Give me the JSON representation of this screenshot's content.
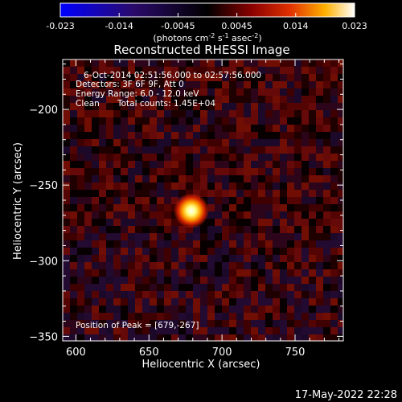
{
  "colorbar": {
    "ticks": [
      "-0.023",
      "-0.014",
      "-0.0045",
      "0.0045",
      "0.014",
      "0.023"
    ],
    "unit_label": "(photons cm",
    "unit_label_sup1": "-2",
    "unit_label_mid": " s",
    "unit_label_sup2": "-1",
    "unit_label_end": " asec",
    "unit_label_sup3": "-2",
    "unit_label_close": ")"
  },
  "chart_data": {
    "type": "heatmap",
    "title": "Reconstructed RHESSI Image",
    "xlabel": "Heliocentric X (arcsec)",
    "ylabel": "Heliocentric Y (arcsec)",
    "xlim": [
      591,
      783
    ],
    "ylim": [
      -353,
      -167
    ],
    "x_ticks": [
      600,
      650,
      700,
      750
    ],
    "y_ticks": [
      -200,
      -250,
      -300,
      -350
    ],
    "color_range": [
      -0.023,
      0.023
    ],
    "colormap": "blue-black-red-yellow-white",
    "peak": {
      "x": 679,
      "y": -267,
      "value": 0.023
    },
    "annotations": {
      "time_range": "6-Oct-2014 02:51:56.000 to 02:57:56.000",
      "detectors": "Detectors: 3F 6F 9F, Att 0",
      "energy_range": "Energy Range: 6.0 - 12.0 keV",
      "method": "Clean",
      "total_counts": "Total counts: 1.45E+04",
      "peak_position": "Position of Peak = [679,-267]"
    }
  },
  "timestamp": "17-May-2022 22:28"
}
